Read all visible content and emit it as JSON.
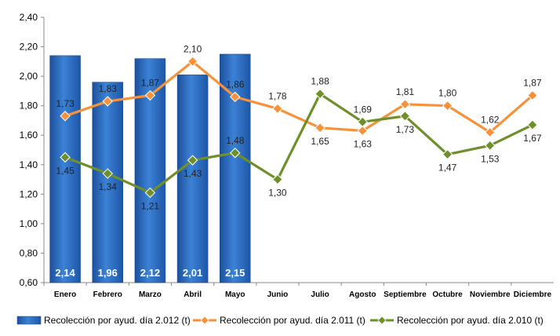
{
  "chart_data": {
    "type": "bar+line",
    "categories": [
      "Enero",
      "Febrero",
      "Marzo",
      "Abril",
      "Mayo",
      "Junio",
      "Julio",
      "Agosto",
      "Septiembre",
      "Octubre",
      "Noviembre",
      "Diciembre"
    ],
    "series": [
      {
        "name": "Recolección por ayud. día 2.012 (t)",
        "type": "bar",
        "color": "#2d6fc0",
        "values": [
          2.14,
          1.96,
          2.12,
          2.01,
          2.15,
          null,
          null,
          null,
          null,
          null,
          null,
          null
        ],
        "labels": [
          "2,14",
          "1,96",
          "2,12",
          "2,01",
          "2,15"
        ]
      },
      {
        "name": "Recolección por ayud. día 2.011 (t)",
        "type": "line",
        "color": "#f7923a",
        "values": [
          1.73,
          1.83,
          1.87,
          2.1,
          1.86,
          1.78,
          1.65,
          1.63,
          1.81,
          1.8,
          1.62,
          1.87
        ],
        "labels": [
          "1,73",
          "1,83",
          "1,87",
          "2,10",
          "1,86",
          "1,78",
          "1,65",
          "1,63",
          "1,81",
          "1,80",
          "1,62",
          "1,87"
        ]
      },
      {
        "name": "Recolección por ayud. día 2.010 (t)",
        "type": "line",
        "color": "#6f8f2b",
        "values": [
          1.45,
          1.34,
          1.21,
          1.43,
          1.48,
          1.3,
          1.88,
          1.69,
          1.73,
          1.47,
          1.53,
          1.67
        ],
        "labels": [
          "1,45",
          "1,34",
          "1,21",
          "1,43",
          "1,48",
          "1,30",
          "1,88",
          "1,69",
          "1,73",
          "1,47",
          "1,53",
          "1,67"
        ]
      }
    ],
    "ylim": [
      0.6,
      2.4
    ],
    "yticks": [
      0.6,
      0.8,
      1.0,
      1.2,
      1.4,
      1.6,
      1.8,
      2.0,
      2.2,
      2.4
    ],
    "ytick_labels": [
      "0,60",
      "0,80",
      "1,00",
      "1,20",
      "1,40",
      "1,60",
      "1,80",
      "2,00",
      "2,20",
      "2,40"
    ],
    "grid": false,
    "legend_position": "bottom"
  }
}
